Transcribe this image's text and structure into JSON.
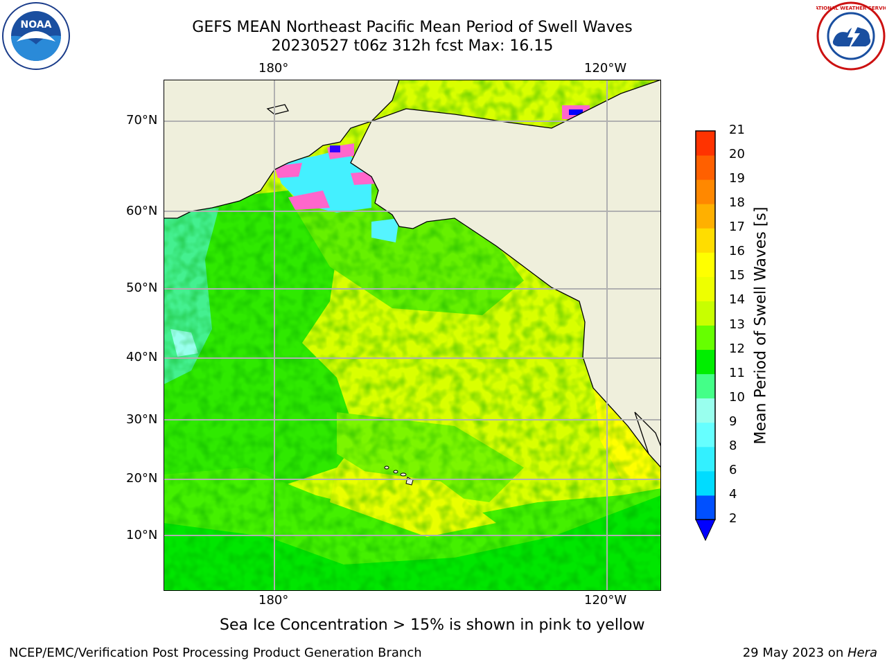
{
  "header": {
    "title_line1": "GEFS MEAN Northeast Pacific Mean Period of Swell Waves",
    "title_line2": "20230527 t06z 312h fcst   Max: 16.15"
  },
  "map": {
    "top_lon_labels": [
      "180°",
      "120°W"
    ],
    "bottom_lon_labels": [
      "180°",
      "120°W"
    ],
    "lat_labels": [
      "70°N",
      "60°N",
      "50°N",
      "40°N",
      "30°N",
      "20°N",
      "10°N"
    ]
  },
  "colorbar": {
    "label": "Mean Period of Swell Waves [s]",
    "ticks": [
      "2",
      "4",
      "6",
      "8",
      "9",
      "10",
      "11",
      "12",
      "13",
      "14",
      "15",
      "16",
      "17",
      "18",
      "19",
      "20",
      "21"
    ],
    "colors": [
      "#0050ff",
      "#00dcff",
      "#33f0ff",
      "#66ffff",
      "#99ffee",
      "#44ff88",
      "#00ee00",
      "#66ff00",
      "#c8ff00",
      "#eeff00",
      "#ffff00",
      "#ffdd00",
      "#ffb000",
      "#ff8800",
      "#ff6000",
      "#ff3300",
      "#ff0000"
    ],
    "under_color": "#0000ff"
  },
  "footer": {
    "note": "Sea Ice Concentration > 15% is shown in pink to yellow",
    "left": "NCEP/EMC/Verification Post Processing Product Generation Branch",
    "right_prefix": "29 May 2023 on ",
    "right_host": "Hera"
  },
  "logos": {
    "noaa_text": "NOAA",
    "nws_text": "NATIONAL WEATHER SERVICE"
  }
}
